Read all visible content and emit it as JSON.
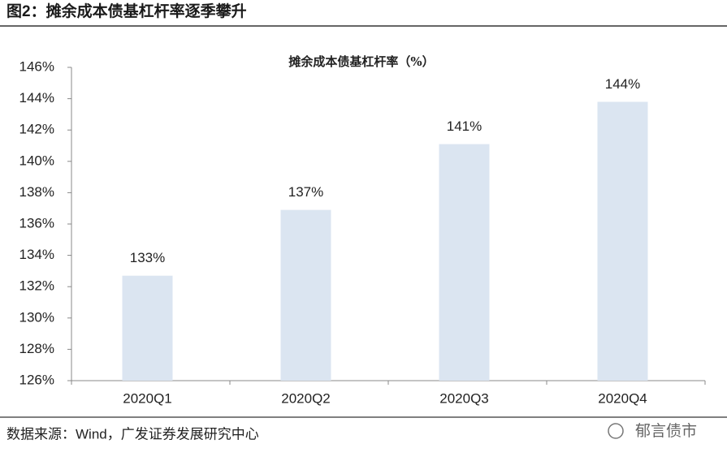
{
  "figure_title": "图2：摊余成本债基杠杆率逐季攀升",
  "source": "数据来源：Wind，广发证券发展研究中心",
  "watermark": "郁言债市",
  "chart_data": {
    "type": "bar",
    "title": "摊余成本债基杠杆率（%）",
    "categories": [
      "2020Q1",
      "2020Q2",
      "2020Q3",
      "2020Q4"
    ],
    "values": [
      132.7,
      136.9,
      141.1,
      143.8
    ],
    "value_labels": [
      "133%",
      "137%",
      "141%",
      "144%"
    ],
    "color": "#dbe5f1",
    "ylim": [
      126,
      146
    ],
    "yticks": [
      {
        "value": 126,
        "label": "126%"
      },
      {
        "value": 128,
        "label": "128%"
      },
      {
        "value": 130,
        "label": "130%"
      },
      {
        "value": 132,
        "label": "132%"
      },
      {
        "value": 134,
        "label": "134%"
      },
      {
        "value": 136,
        "label": "136%"
      },
      {
        "value": 138,
        "label": "138%"
      },
      {
        "value": 140,
        "label": "140%"
      },
      {
        "value": 142,
        "label": "142%"
      },
      {
        "value": 144,
        "label": "144%"
      },
      {
        "value": 146,
        "label": "146%"
      }
    ],
    "grid": false
  }
}
